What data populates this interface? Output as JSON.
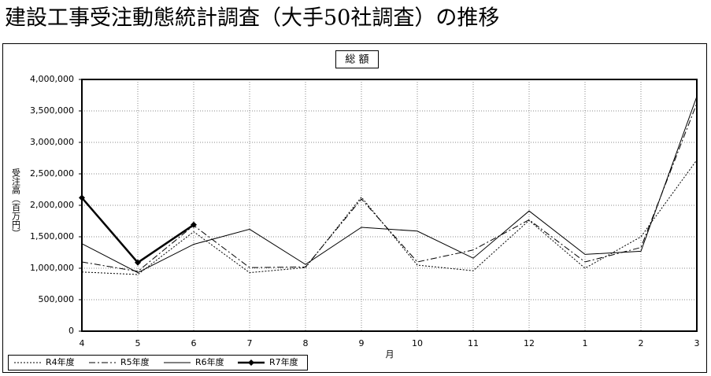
{
  "chart_data": {
    "type": "line",
    "title": "建設工事受注動態統計調査（大手50社調査）の推移",
    "subtitle": "総 額",
    "y_label": "受注高（百万円）",
    "x_label": "月",
    "categories": [
      "4",
      "5",
      "6",
      "7",
      "8",
      "9",
      "10",
      "11",
      "12",
      "1",
      "2",
      "3"
    ],
    "ylim": [
      0,
      4000000
    ],
    "yticks": [
      0,
      {
        "value": 500000,
        "label": "500,000"
      },
      {
        "value": 1000000,
        "label": "1,000,000"
      },
      {
        "value": 1500000,
        "label": "1,500,000"
      },
      {
        "value": 2000000,
        "label": "2,000,000"
      },
      {
        "value": 2500000,
        "label": "2,500,000"
      },
      {
        "value": 3000000,
        "label": "3,000,000"
      },
      {
        "value": 3500000,
        "label": "3,500,000"
      },
      {
        "value": 4000000,
        "label": "4,000,000"
      }
    ],
    "grid": true,
    "legend": "bottom-left",
    "series": [
      {
        "name": "R4年度",
        "color": "#000000",
        "style": "dotted",
        "values": [
          940000,
          900000,
          1580000,
          930000,
          1010000,
          2130000,
          1050000,
          960000,
          1760000,
          1000000,
          1500000,
          2720000
        ]
      },
      {
        "name": "R5年度",
        "color": "#000000",
        "style": "dashdot",
        "values": [
          1100000,
          950000,
          1680000,
          1010000,
          1020000,
          2100000,
          1100000,
          1290000,
          1770000,
          1100000,
          1330000,
          3620000
        ]
      },
      {
        "name": "R6年度",
        "color": "#000000",
        "style": "solid",
        "values": [
          1390000,
          930000,
          1380000,
          1620000,
          1060000,
          1650000,
          1590000,
          1160000,
          1910000,
          1220000,
          1270000,
          3730000
        ]
      },
      {
        "name": "R7年度",
        "color": "#000000",
        "style": "bold",
        "marker": "diamond",
        "values": [
          2120000,
          1090000,
          1690000,
          null,
          null,
          null,
          null,
          null,
          null,
          null,
          null,
          null
        ]
      }
    ]
  }
}
